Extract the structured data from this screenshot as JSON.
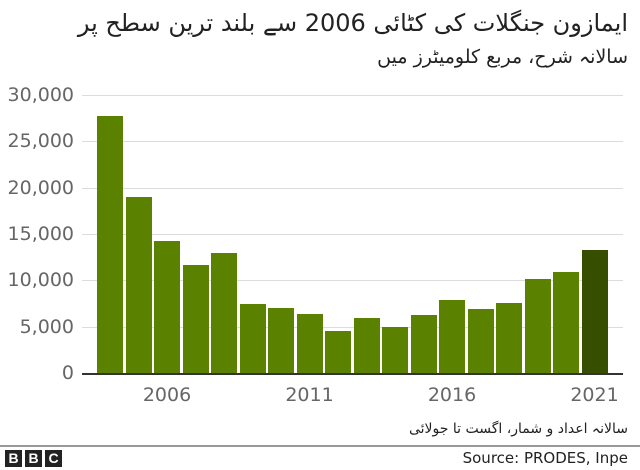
{
  "header": {
    "title": "ایمازون جنگلات کی کٹائی 2006 سے بلند ترین سطح پر",
    "subtitle": "سالانہ شرح، مربع کلومیٹرز میں"
  },
  "footer": {
    "note": "سالانہ اعداد و شمار، اگست تا جولائی",
    "source": "Source: PRODES, Inpe",
    "logo": [
      "B",
      "B",
      "C"
    ]
  },
  "colors": {
    "bar": "#5a8200",
    "highlight": "#354e00",
    "grid": "#dcdcdc",
    "axis_text": "#666666"
  },
  "chart_data": {
    "type": "bar",
    "title": "ایمازون جنگلات کی کٹائی 2006 سے بلند ترین سطح پر",
    "subtitle": "سالانہ شرح، مربع کلومیٹرز میں",
    "categories": [
      "2004",
      "2005",
      "2006",
      "2007",
      "2008",
      "2009",
      "2010",
      "2011",
      "2012",
      "2013",
      "2014",
      "2015",
      "2016",
      "2017",
      "2018",
      "2019",
      "2020",
      "2021"
    ],
    "values": [
      27772,
      19014,
      14286,
      11651,
      12911,
      7464,
      7000,
      6418,
      4571,
      5891,
      5012,
      6207,
      7893,
      6947,
      7536,
      10129,
      10851,
      13235
    ],
    "highlight": "2021",
    "xlabel": "",
    "ylabel": "",
    "ylim": [
      0,
      30000
    ],
    "yticks": [
      0,
      5000,
      10000,
      15000,
      20000,
      25000,
      30000
    ],
    "ytick_labels": [
      "0",
      "5,000",
      "10,000",
      "15,000",
      "20,000",
      "25,000",
      "30,000"
    ],
    "xtick_labels": [
      "2006",
      "2011",
      "2016",
      "2021"
    ],
    "grid": true,
    "legend": null
  }
}
